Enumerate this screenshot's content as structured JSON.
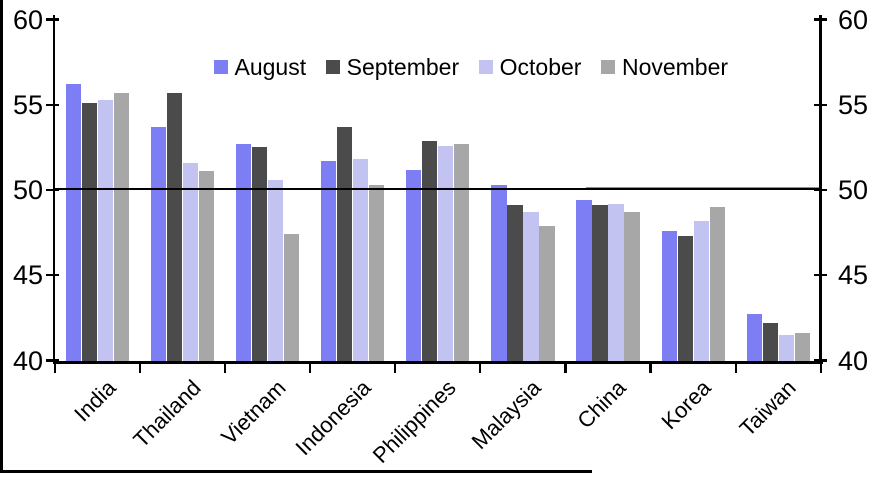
{
  "chart_data": {
    "type": "bar",
    "title": "",
    "categories": [
      "India",
      "Thailand",
      "Vietnam",
      "Indonesia",
      "Philippines",
      "Malaysia",
      "China",
      "Korea",
      "Taiwan"
    ],
    "series": [
      {
        "name": "August",
        "color": "#7d7df4",
        "values": [
          56.2,
          53.7,
          52.7,
          51.7,
          51.2,
          50.3,
          49.4,
          47.6,
          42.7
        ]
      },
      {
        "name": "September",
        "color": "#4b4b4b",
        "values": [
          55.1,
          55.7,
          52.5,
          53.7,
          52.9,
          49.1,
          49.1,
          47.3,
          42.2
        ]
      },
      {
        "name": "October",
        "color": "#c3c3f2",
        "values": [
          55.3,
          51.6,
          50.6,
          51.8,
          52.6,
          48.7,
          49.2,
          48.2,
          41.5
        ]
      },
      {
        "name": "November",
        "color": "#a7a7a7",
        "values": [
          55.7,
          51.1,
          47.4,
          50.3,
          52.7,
          47.9,
          48.7,
          49.0,
          41.6
        ]
      }
    ],
    "ylim": [
      40,
      60
    ],
    "yticks": [
      40,
      45,
      50,
      55,
      60
    ],
    "ytick_labels": [
      "40",
      "45",
      "50",
      "55",
      "60"
    ],
    "dual_y_axis": true,
    "reference_line": 50,
    "grid": false,
    "legend_position": "top-center",
    "axis_color": "#000000",
    "reference_line_color": "#000000"
  }
}
